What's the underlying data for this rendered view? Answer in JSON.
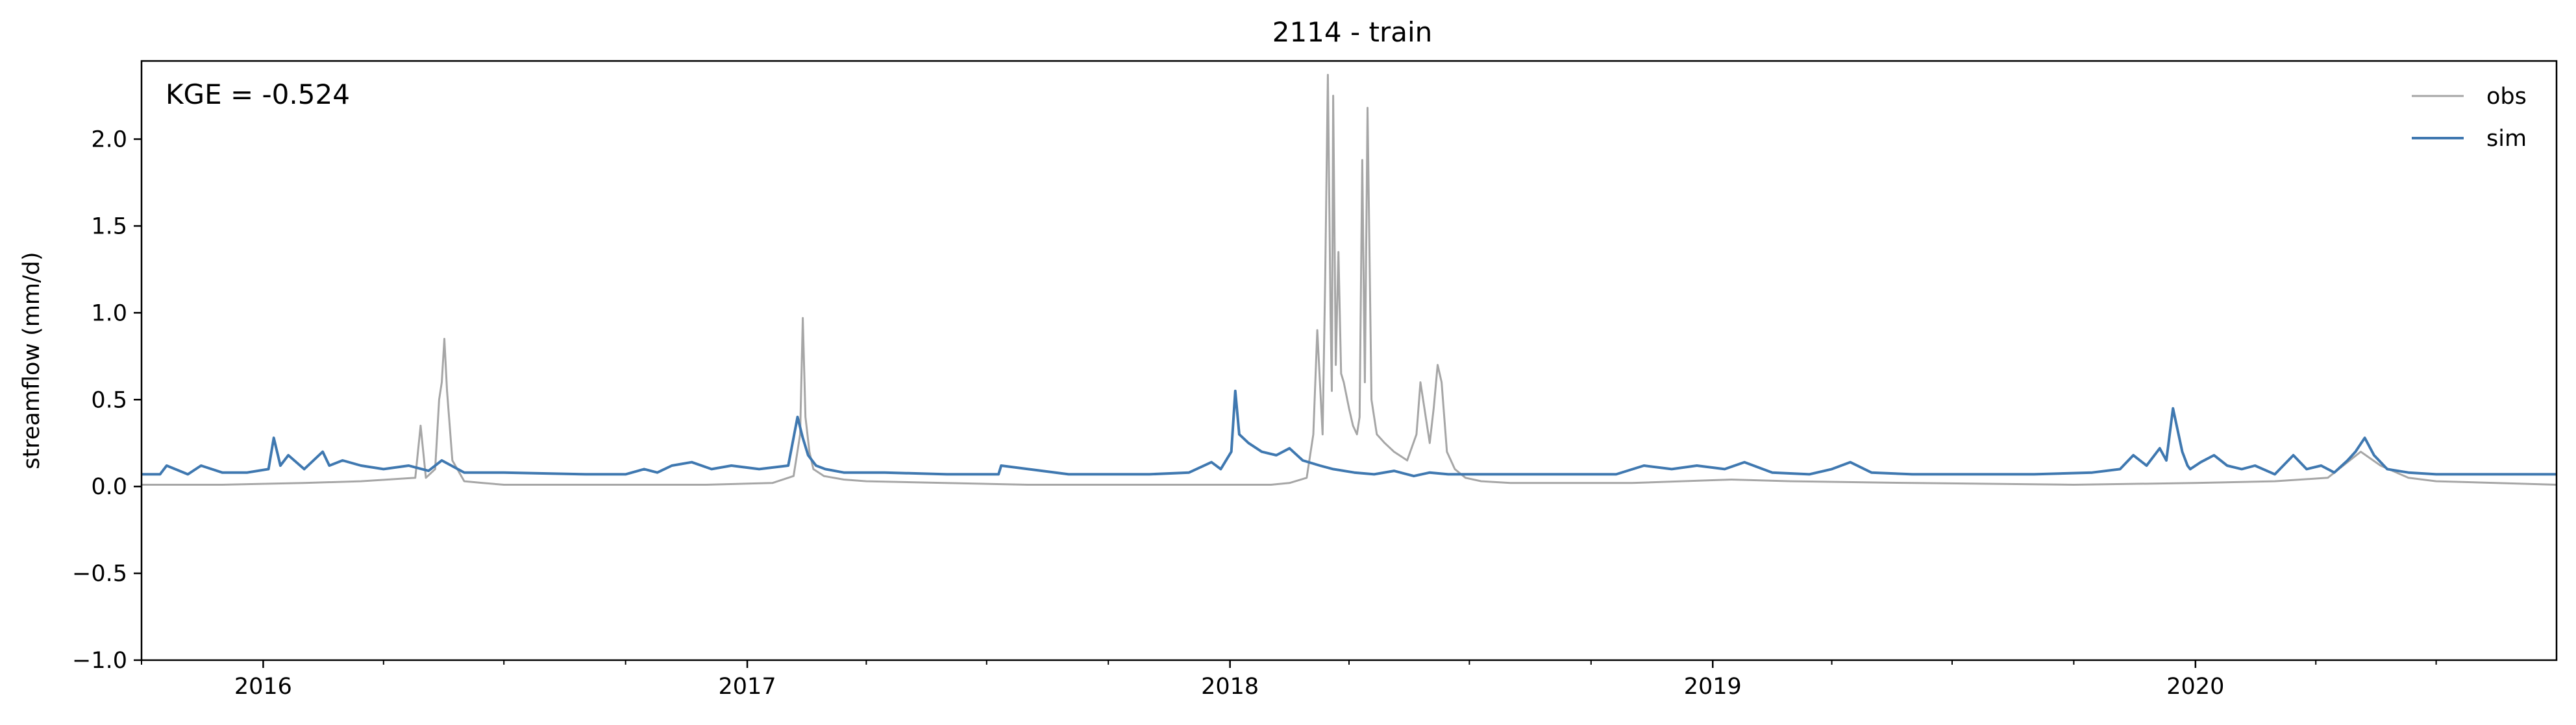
{
  "chart_data": {
    "type": "line",
    "title": "2114 - train",
    "xlabel": "",
    "ylabel": "streamflow (mm/d)",
    "xlim": [
      "2015-10-01",
      "2020-09-30"
    ],
    "ylim": [
      -1.0,
      2.45
    ],
    "yticks": [
      -1.0,
      -0.5,
      0.0,
      0.5,
      1.0,
      1.5,
      2.0
    ],
    "ytick_labels": [
      "−1.0",
      "−0.5",
      "0.0",
      "0.5",
      "1.0",
      "1.5",
      "2.0"
    ],
    "xticks": [
      "2016-01-01",
      "2017-01-01",
      "2018-01-01",
      "2019-01-01",
      "2020-01-01"
    ],
    "xtick_labels": [
      "2016",
      "2017",
      "2018",
      "2019",
      "2020"
    ],
    "annotation": "KGE = -0.524",
    "legend": {
      "position": "top-right"
    },
    "series": [
      {
        "name": "obs",
        "color": "#a6a6a6",
        "x": [
          "2015-10-01",
          "2015-12-01",
          "2016-02-01",
          "2016-03-15",
          "2016-04-25",
          "2016-04-29",
          "2016-05-03",
          "2016-05-10",
          "2016-05-13",
          "2016-05-15",
          "2016-05-17",
          "2016-05-19",
          "2016-05-23",
          "2016-06-01",
          "2016-06-15",
          "2016-07-01",
          "2016-12-01",
          "2017-01-20",
          "2017-02-05",
          "2017-02-10",
          "2017-02-12",
          "2017-02-14",
          "2017-02-17",
          "2017-02-20",
          "2017-02-28",
          "2017-03-15",
          "2017-04-01",
          "2017-08-01",
          "2017-12-01",
          "2018-02-01",
          "2018-02-15",
          "2018-02-28",
          "2018-03-05",
          "2018-03-08",
          "2018-03-12",
          "2018-03-14",
          "2018-03-16",
          "2018-03-18",
          "2018-03-19",
          "2018-03-20",
          "2018-03-22",
          "2018-03-24",
          "2018-03-26",
          "2018-03-28",
          "2018-04-01",
          "2018-04-04",
          "2018-04-07",
          "2018-04-09",
          "2018-04-11",
          "2018-04-13",
          "2018-04-15",
          "2018-04-18",
          "2018-04-22",
          "2018-04-28",
          "2018-05-05",
          "2018-05-15",
          "2018-05-22",
          "2018-05-25",
          "2018-06-01",
          "2018-06-04",
          "2018-06-07",
          "2018-06-10",
          "2018-06-14",
          "2018-06-20",
          "2018-06-28",
          "2018-07-10",
          "2018-08-01",
          "2018-11-01",
          "2019-01-15",
          "2019-03-01",
          "2019-06-01",
          "2019-10-01",
          "2020-01-01",
          "2020-03-01",
          "2020-04-10",
          "2020-05-05",
          "2020-05-20",
          "2020-06-10",
          "2020-07-01",
          "2020-09-30"
        ],
        "y": [
          0.01,
          0.01,
          0.02,
          0.03,
          0.05,
          0.35,
          0.05,
          0.1,
          0.5,
          0.6,
          0.85,
          0.55,
          0.15,
          0.03,
          0.02,
          0.01,
          0.01,
          0.02,
          0.06,
          0.3,
          0.97,
          0.4,
          0.2,
          0.1,
          0.06,
          0.04,
          0.03,
          0.01,
          0.01,
          0.01,
          0.02,
          0.05,
          0.3,
          0.9,
          0.3,
          1.2,
          2.37,
          1.0,
          0.55,
          2.25,
          0.7,
          1.35,
          0.65,
          0.6,
          0.45,
          0.35,
          0.3,
          0.4,
          1.88,
          0.6,
          2.18,
          0.5,
          0.3,
          0.25,
          0.2,
          0.15,
          0.3,
          0.6,
          0.25,
          0.45,
          0.7,
          0.6,
          0.2,
          0.1,
          0.05,
          0.03,
          0.02,
          0.02,
          0.04,
          0.03,
          0.02,
          0.01,
          0.02,
          0.03,
          0.05,
          0.2,
          0.12,
          0.05,
          0.03,
          0.01
        ]
      },
      {
        "name": "sim",
        "color": "#3f78b0",
        "x": [
          "2015-10-01",
          "2015-10-15",
          "2015-10-20",
          "2015-11-05",
          "2015-11-15",
          "2015-12-01",
          "2015-12-20",
          "2016-01-05",
          "2016-01-09",
          "2016-01-14",
          "2016-01-20",
          "2016-02-01",
          "2016-02-15",
          "2016-02-20",
          "2016-03-01",
          "2016-03-15",
          "2016-04-01",
          "2016-04-20",
          "2016-05-05",
          "2016-05-15",
          "2016-06-01",
          "2016-07-01",
          "2016-09-01",
          "2016-10-01",
          "2016-10-15",
          "2016-10-25",
          "2016-11-05",
          "2016-11-20",
          "2016-12-05",
          "2016-12-20",
          "2017-01-10",
          "2017-02-01",
          "2017-02-08",
          "2017-02-12",
          "2017-02-16",
          "2017-02-22",
          "2017-03-01",
          "2017-03-15",
          "2017-04-15",
          "2017-06-01",
          "2017-07-10",
          "2017-07-12",
          "2017-09-01",
          "2017-11-01",
          "2017-12-01",
          "2017-12-18",
          "2017-12-25",
          "2018-01-02",
          "2018-01-05",
          "2018-01-08",
          "2018-01-15",
          "2018-01-25",
          "2018-02-05",
          "2018-02-15",
          "2018-02-25",
          "2018-03-10",
          "2018-03-20",
          "2018-04-05",
          "2018-04-20",
          "2018-05-05",
          "2018-05-20",
          "2018-06-01",
          "2018-06-15",
          "2018-07-01",
          "2018-09-01",
          "2018-10-20",
          "2018-11-10",
          "2018-12-01",
          "2018-12-20",
          "2019-01-10",
          "2019-01-25",
          "2019-02-15",
          "2019-03-15",
          "2019-04-01",
          "2019-04-15",
          "2019-05-01",
          "2019-06-01",
          "2019-09-01",
          "2019-10-15",
          "2019-11-05",
          "2019-11-15",
          "2019-11-25",
          "2019-12-05",
          "2019-12-10",
          "2019-12-15",
          "2019-12-22",
          "2019-12-26",
          "2019-12-28",
          "2020-01-05",
          "2020-01-15",
          "2020-01-25",
          "2020-02-05",
          "2020-02-15",
          "2020-03-01",
          "2020-03-15",
          "2020-03-25",
          "2020-04-05",
          "2020-04-15",
          "2020-04-25",
          "2020-05-01",
          "2020-05-08",
          "2020-05-15",
          "2020-05-25",
          "2020-06-10",
          "2020-07-01",
          "2020-09-30"
        ],
        "y": [
          0.07,
          0.07,
          0.12,
          0.07,
          0.12,
          0.08,
          0.08,
          0.1,
          0.28,
          0.12,
          0.18,
          0.1,
          0.2,
          0.12,
          0.15,
          0.12,
          0.1,
          0.12,
          0.09,
          0.15,
          0.08,
          0.08,
          0.07,
          0.07,
          0.1,
          0.08,
          0.12,
          0.14,
          0.1,
          0.12,
          0.1,
          0.12,
          0.4,
          0.28,
          0.18,
          0.12,
          0.1,
          0.08,
          0.08,
          0.07,
          0.07,
          0.12,
          0.07,
          0.07,
          0.08,
          0.14,
          0.1,
          0.2,
          0.55,
          0.3,
          0.25,
          0.2,
          0.18,
          0.22,
          0.15,
          0.12,
          0.1,
          0.08,
          0.07,
          0.09,
          0.06,
          0.08,
          0.07,
          0.07,
          0.07,
          0.07,
          0.12,
          0.1,
          0.12,
          0.1,
          0.14,
          0.08,
          0.07,
          0.1,
          0.14,
          0.08,
          0.07,
          0.07,
          0.08,
          0.1,
          0.18,
          0.12,
          0.22,
          0.15,
          0.45,
          0.2,
          0.12,
          0.1,
          0.14,
          0.18,
          0.12,
          0.1,
          0.12,
          0.07,
          0.18,
          0.1,
          0.12,
          0.08,
          0.15,
          0.2,
          0.28,
          0.18,
          0.1,
          0.08,
          0.07,
          0.07
        ]
      }
    ]
  }
}
